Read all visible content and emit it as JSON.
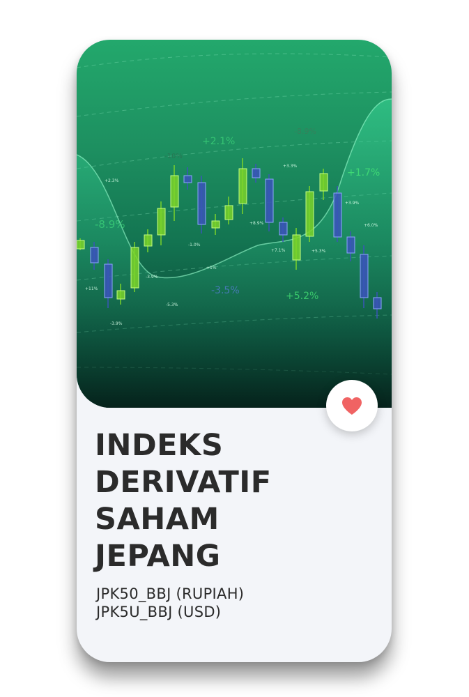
{
  "card": {
    "title_lines": [
      "INDEKS",
      "DERIVATIF",
      "SAHAM",
      "JEPANG"
    ],
    "code_lines": [
      "JPK50_BBJ (RUPIAH)",
      "JPK5U_BBJ (USD)"
    ]
  },
  "hero": {
    "labels": [
      "-8.9%",
      "+2.1%",
      "-10%",
      "+3.3%",
      "+1.7%",
      "+2.3%",
      "-8.9%",
      "+3.9%",
      "+6.0%",
      "+8.9%",
      "+7.1%",
      "+5.3%",
      "-1.0%",
      "-3.5%",
      "+5.2%",
      "+11%",
      "-3.9%",
      "-5.3%",
      "-3.9%",
      "+1%"
    ]
  },
  "like_button": {
    "icon": "heart-icon",
    "color": "#f06363"
  },
  "colors": {
    "accent": "#1d8f60",
    "candle_up": "#7bd32a",
    "candle_down": "#3a55b8"
  }
}
